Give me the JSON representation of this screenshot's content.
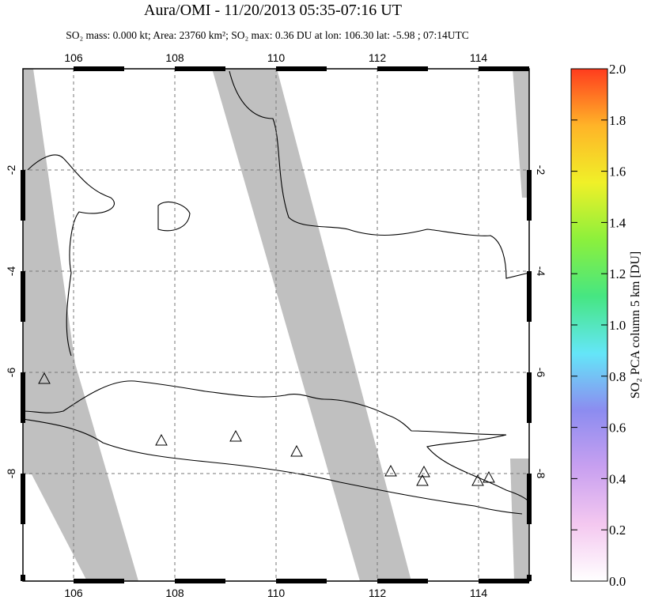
{
  "chart_data": {
    "type": "map",
    "title": "Aura/OMI - 11/20/2013 05:35-07:16 UT",
    "subtitle": "SO₂ mass: 0.000 kt; Area: 23760 km²; SO₂ max: 0.36 DU at lon: 106.30 lat: -5.98 ; 07:14UTC",
    "xlim": [
      105,
      115
    ],
    "ylim": [
      -10.125,
      0
    ],
    "xticks": [
      106,
      108,
      110,
      112,
      114
    ],
    "yticks": [
      -2,
      -4,
      -6,
      -8
    ],
    "grid": true,
    "colorbar": {
      "label": "SO₂ PCA column 5 km [DU]",
      "lim": [
        0,
        2
      ],
      "ticks": [
        {
          "value": 0,
          "label": "0.0"
        },
        0.2,
        0.4,
        0.6,
        0.8,
        {
          "value": 1,
          "label": "1.0"
        },
        1.2,
        1.4,
        1.6,
        1.8,
        {
          "value": 2,
          "label": "2.0"
        }
      ],
      "colormap": [
        "#ffffff",
        "#f4c8f0",
        "#c8a0f0",
        "#8c8cf0",
        "#64e6f8",
        "#46e682",
        "#8cf03c",
        "#f0f028",
        "#ffb428",
        "#ff3c1e"
      ]
    }
  }
}
